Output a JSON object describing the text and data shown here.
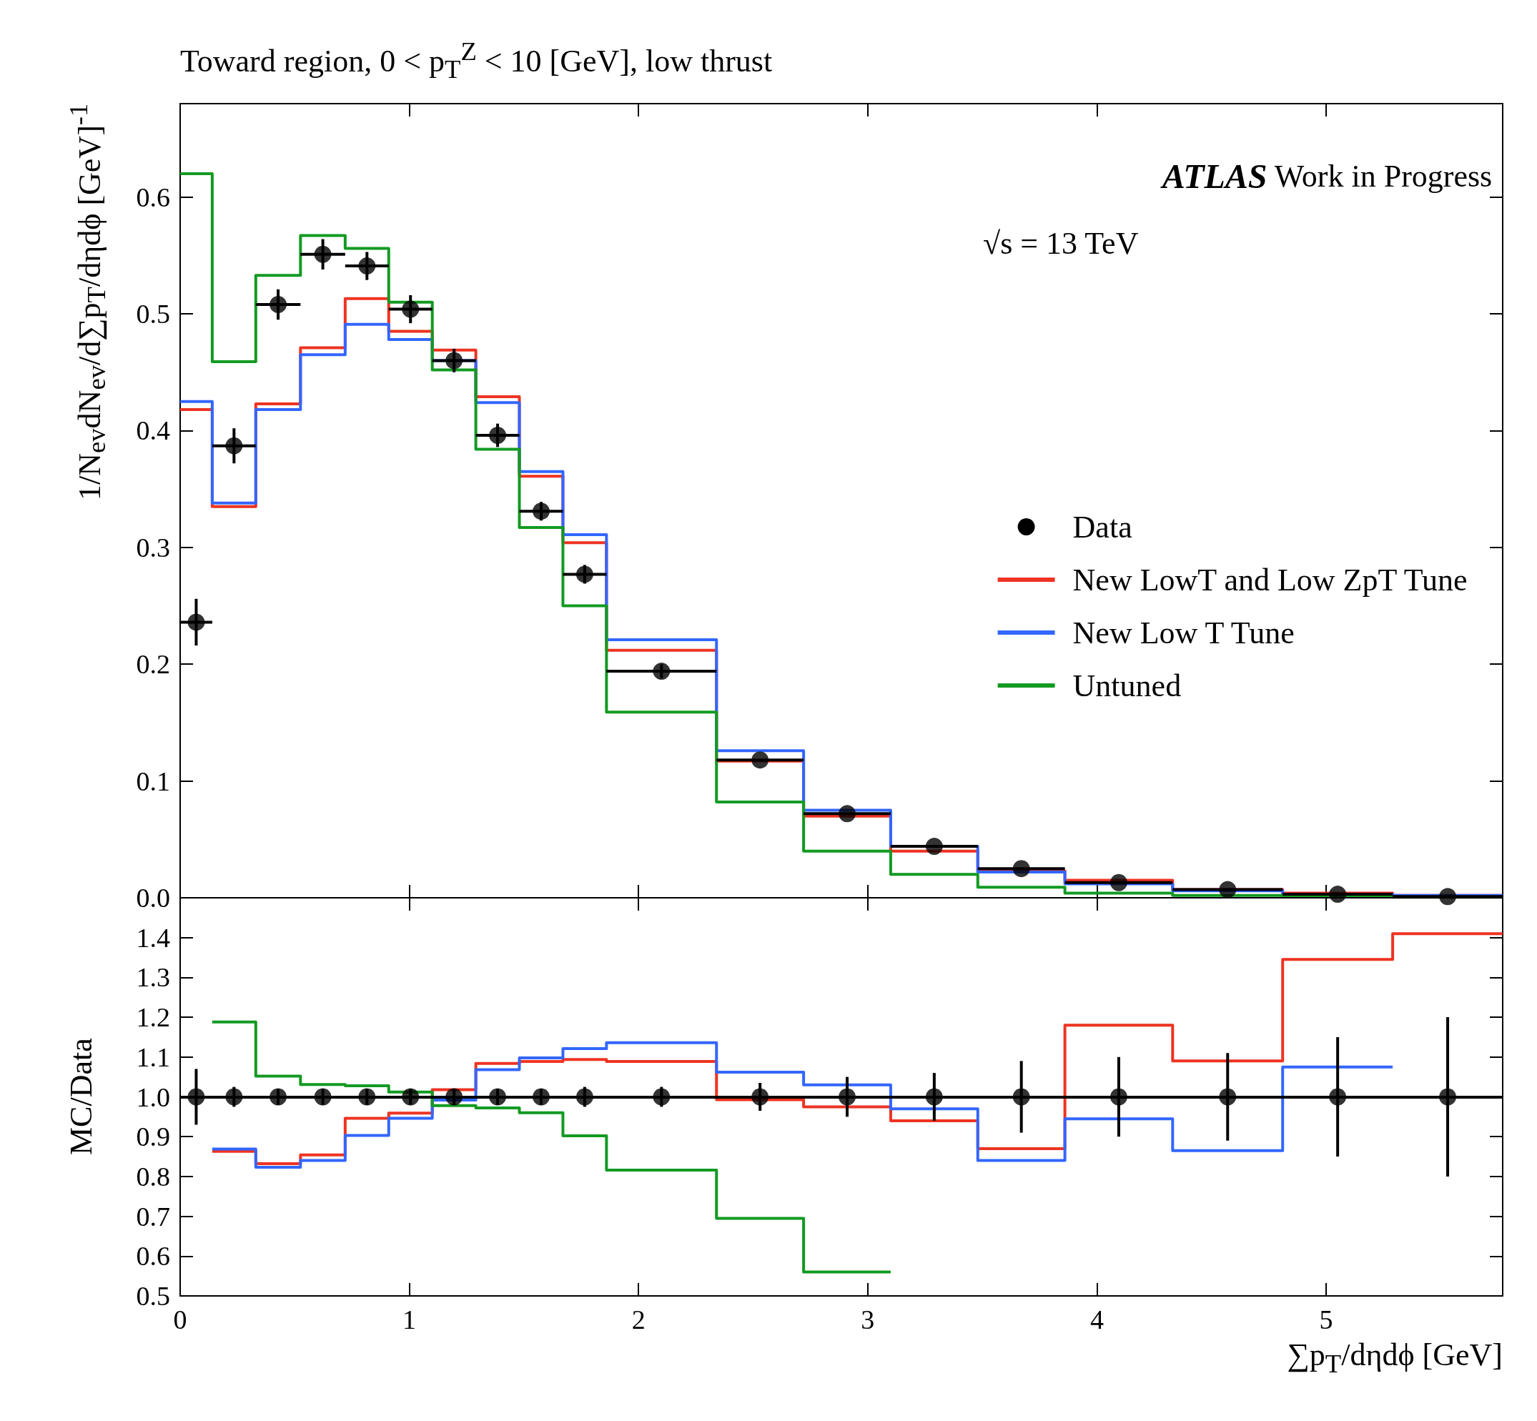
{
  "chart_data": [
    {
      "type": "histogram",
      "title": "Toward region, 0 < p$_{T}$$^{Z}$ < 10 [GeV], low thrust",
      "ylabel": "1/N$_{ev}$dN$_{ev}$/d∑p$_{T}$/dηdϕ [GeV]$^{-1}$",
      "annotations": [
        "ATLAS Work in Progress",
        "√s = 13 TeV"
      ],
      "bins": [
        0,
        0.14,
        0.33,
        0.525,
        0.72,
        0.91,
        1.1,
        1.29,
        1.48,
        1.67,
        1.86,
        2.34,
        2.72,
        3.1,
        3.48,
        3.86,
        4.33,
        4.81,
        5.29,
        5.77
      ],
      "series": [
        {
          "name": "Data",
          "type": "scatter",
          "color": "#000000",
          "marker": "circle",
          "x": [
            0.07,
            0.235,
            0.4275,
            0.6225,
            0.815,
            1.005,
            1.195,
            1.385,
            1.575,
            1.765,
            2.1,
            2.53,
            2.91,
            3.29,
            3.67,
            4.095,
            4.57,
            5.05,
            5.53
          ],
          "values": [
            0.236,
            0.387,
            0.508,
            0.551,
            0.541,
            0.504,
            0.46,
            0.396,
            0.331,
            0.277,
            0.194,
            0.118,
            0.072,
            0.044,
            0.025,
            0.013,
            0.007,
            0.003,
            0.001
          ],
          "errors": [
            0.02,
            0.015,
            0.013,
            0.013,
            0.012,
            0.012,
            0.01,
            0.01,
            0.008,
            0.008,
            0.006,
            null,
            null,
            null,
            null,
            null,
            null,
            null,
            null
          ],
          "xerrors": [
            0.07,
            0.095,
            0.0975,
            0.0975,
            0.095,
            0.095,
            0.095,
            0.095,
            0.095,
            0.095,
            0.24,
            0.19,
            0.19,
            0.19,
            0.19,
            0.235,
            0.24,
            0.24,
            0.24
          ]
        },
        {
          "name": "New LowT and Low ZpT Tune",
          "color": "#ee3322",
          "values": [
            0.418,
            0.335,
            0.423,
            0.471,
            0.513,
            0.485,
            0.469,
            0.429,
            0.361,
            0.304,
            0.212,
            0.117,
            0.07,
            0.04,
            0.023,
            0.015,
            0.007,
            0.004,
            0.002
          ]
        },
        {
          "name": "New Low T Tune",
          "color": "#3366ff",
          "values": [
            0.425,
            0.338,
            0.418,
            0.465,
            0.491,
            0.478,
            0.46,
            0.424,
            0.365,
            0.311,
            0.221,
            0.126,
            0.075,
            0.044,
            0.022,
            0.012,
            0.006,
            0.003,
            0.002
          ]
        },
        {
          "name": "Untuned",
          "color": "#129a22",
          "values": [
            0.62,
            0.459,
            0.533,
            0.567,
            0.556,
            0.51,
            0.452,
            0.384,
            0.317,
            0.25,
            0.159,
            0.082,
            0.04,
            0.02,
            0.009,
            0.004,
            0.002,
            0.001,
            0.0005
          ]
        }
      ],
      "xlim": [
        0,
        5.77
      ],
      "xticks": [
        0,
        1,
        2,
        3,
        4,
        5
      ],
      "ylim": [
        0,
        0.68
      ],
      "yticks": [
        {
          "value": 0,
          "label": "0.0"
        },
        0.1,
        0.2,
        0.3,
        0.4,
        0.5,
        0.6
      ],
      "tick_labels": "y",
      "grid": false,
      "legend": "right"
    },
    {
      "type": "histogram",
      "xlabel": "∑p$_{T}$/dηdϕ [GeV]",
      "ylabel": "MC/Data",
      "series": [
        {
          "type": "scatter",
          "color": "#000000",
          "marker": "circle",
          "x": [
            0.07,
            0.235,
            0.4275,
            0.6225,
            0.815,
            1.005,
            1.195,
            1.385,
            1.575,
            1.765,
            2.1,
            2.53,
            2.91,
            3.29,
            3.67,
            4.095,
            4.57,
            5.05,
            5.53
          ],
          "values": [
            1,
            1,
            1,
            1,
            1,
            1,
            1,
            1,
            1,
            1,
            1,
            1,
            1,
            1,
            1,
            1,
            1,
            1,
            1
          ],
          "errors": [
            0.07,
            0.025,
            0.02,
            0.02,
            0.02,
            0.02,
            0.02,
            0.02,
            0.02,
            0.025,
            0.025,
            0.035,
            0.05,
            0.06,
            0.09,
            0.1,
            0.11,
            0.15,
            0.2
          ]
        },
        {
          "color": "#ee3322",
          "bins": [
            0.14,
            0.33,
            0.525,
            0.72,
            0.91,
            1.1,
            1.29,
            1.48,
            1.67,
            1.86,
            2.34,
            2.72,
            3.1,
            3.48,
            3.86,
            4.33,
            4.81,
            5.29,
            5.77
          ],
          "values": [
            0.863,
            0.832,
            0.854,
            0.946,
            0.959,
            1.018,
            1.084,
            1.089,
            1.094,
            1.089,
            0.993,
            0.975,
            0.94,
            0.87,
            1.18,
            1.09,
            1.345,
            1.41
          ]
        },
        {
          "color": "#3366ff",
          "bins": [
            0.14,
            0.33,
            0.525,
            0.72,
            0.91,
            1.1,
            1.29,
            1.48,
            1.67,
            1.86,
            2.34,
            2.72,
            3.1,
            3.48,
            3.86,
            4.33,
            4.81,
            5.29
          ],
          "values": [
            0.869,
            0.823,
            0.84,
            0.903,
            0.946,
            0.992,
            1.068,
            1.098,
            1.121,
            1.136,
            1.062,
            1.03,
            0.97,
            0.84,
            0.945,
            0.865,
            1.075
          ]
        },
        {
          "color": "#129a22",
          "bins": [
            0.14,
            0.33,
            0.525,
            0.72,
            0.91,
            1.1,
            1.29,
            1.48,
            1.67,
            1.86,
            2.34,
            2.72,
            3.1
          ],
          "values": [
            1.188,
            1.052,
            1.031,
            1.028,
            1.012,
            0.978,
            0.972,
            0.96,
            0.902,
            0.816,
            0.695,
            0.56
          ]
        }
      ],
      "ref_lines": [
        {
          "axis": "y",
          "value": 1,
          "color": "#000000"
        }
      ],
      "xlim": [
        0,
        5.77
      ],
      "xticks": [
        0,
        1,
        2,
        3,
        4,
        5
      ],
      "ylim": [
        0.5,
        1.5
      ],
      "yticks": [
        0.5,
        0.6,
        0.7,
        0.8,
        0.9,
        {
          "value": 1,
          "label": "1.0"
        },
        1.1,
        1.2,
        1.3,
        1.4
      ],
      "grid": false,
      "legend": false
    }
  ]
}
